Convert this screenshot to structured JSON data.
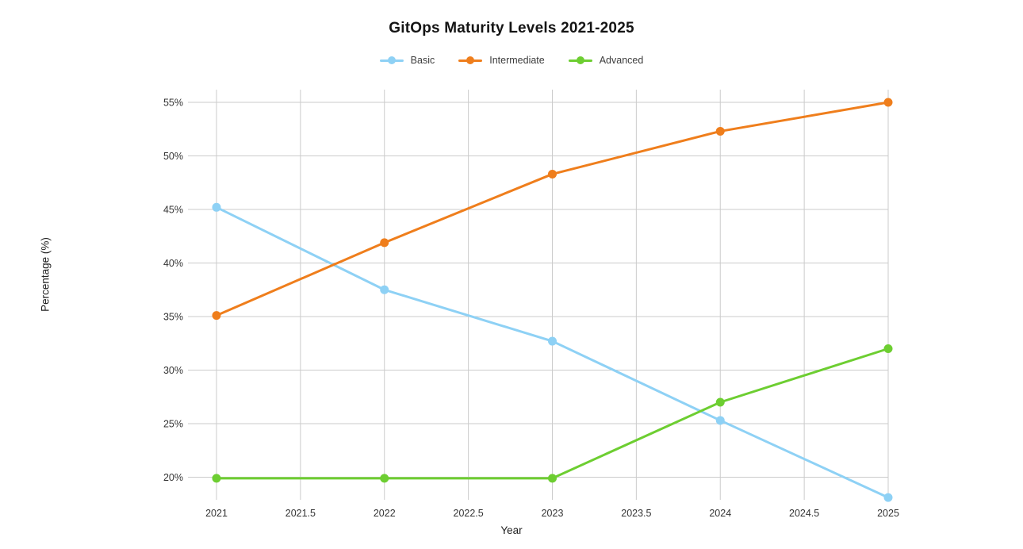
{
  "chart_data": {
    "type": "line",
    "title": "GitOps Maturity Levels 2021-2025",
    "xlabel": "Year",
    "ylabel": "Percentage (%)",
    "x": [
      2021,
      2022,
      2023,
      2024,
      2025
    ],
    "series": [
      {
        "name": "Basic",
        "color": "#8ed1f5",
        "values": [
          45.2,
          37.5,
          32.7,
          25.3,
          18.1
        ]
      },
      {
        "name": "Intermediate",
        "color": "#ef7e1c",
        "values": [
          35.1,
          41.9,
          48.3,
          52.3,
          55.0
        ]
      },
      {
        "name": "Advanced",
        "color": "#6dce31",
        "values": [
          19.9,
          19.9,
          19.9,
          27.0,
          32.0
        ]
      }
    ],
    "x_ticks": [
      "2021",
      "2021.5",
      "2022",
      "2022.5",
      "2023",
      "2023.5",
      "2024",
      "2024.5",
      "2025"
    ],
    "y_ticks": [
      "20%",
      "25%",
      "30%",
      "35%",
      "40%",
      "45%",
      "50%",
      "55%"
    ],
    "xlim": [
      2021,
      2025
    ],
    "ylim": [
      20,
      55
    ],
    "grid": true,
    "legend_position": "top",
    "colors": {
      "grid": "#cbcbcb",
      "tick_text": "#333333",
      "title_text": "#141414"
    }
  }
}
